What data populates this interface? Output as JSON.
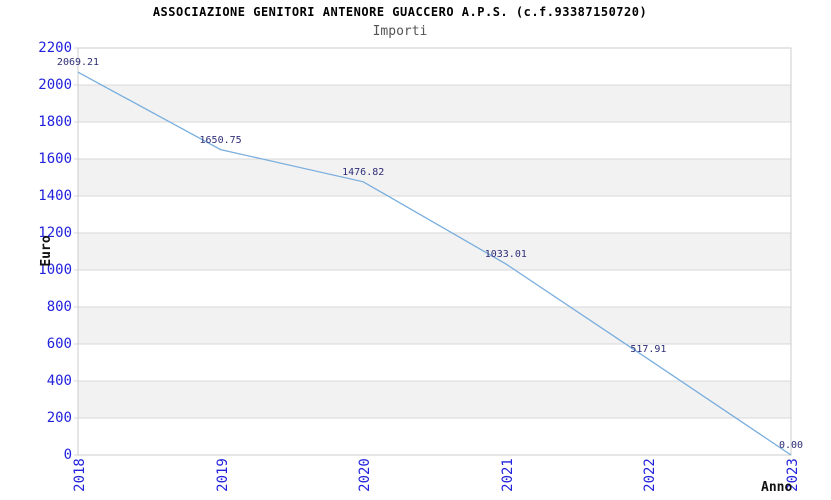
{
  "chart_data": {
    "type": "line",
    "title": "ASSOCIAZIONE GENITORI ANTENORE GUACCERO A.P.S. (c.f.93387150720)",
    "subtitle": "Importi",
    "xlabel": "Anno",
    "ylabel": "Euro",
    "x": [
      "2018",
      "2019",
      "2020",
      "2021",
      "2022",
      "2023"
    ],
    "series": [
      {
        "name": "Importi",
        "values": [
          2069.21,
          1650.75,
          1476.82,
          1033.01,
          517.91,
          0.0
        ]
      }
    ],
    "point_labels": [
      "2069.21",
      "1650.75",
      "1476.82",
      "1033.01",
      "517.91",
      "0.00"
    ],
    "ylim": [
      0,
      2200
    ],
    "ytick_step": 200,
    "ytick_labels": [
      "0",
      "200",
      "400",
      "600",
      "800",
      "1000",
      "1200",
      "1400",
      "1600",
      "1800",
      "2000",
      "2200"
    ],
    "grid": "horizontal gridlines with alternating shaded bands",
    "legend": "none",
    "colors": {
      "line": "#79aede",
      "tick_label": "#2222dd",
      "point_label": "#2e2e78",
      "band_fill": "#f2f2f2",
      "grid_line": "#d8d8d8",
      "axis_border": "#cccccc",
      "title": "#000000",
      "subtitle": "#555555"
    }
  }
}
